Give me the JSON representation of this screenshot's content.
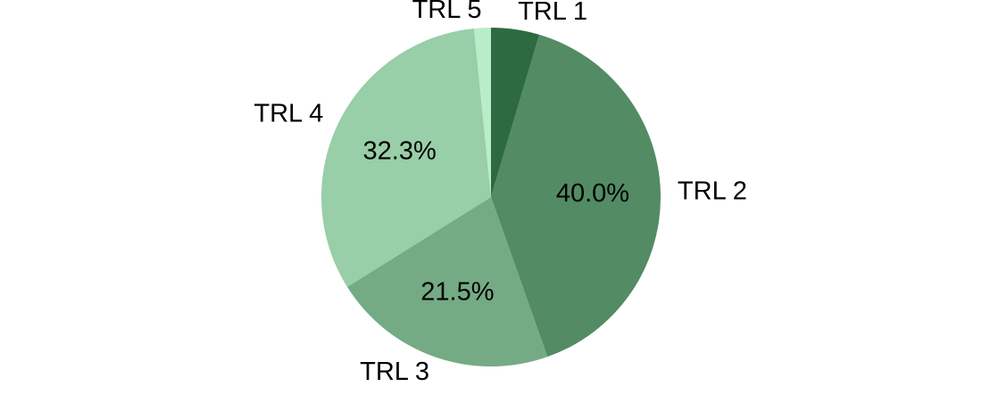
{
  "chart_data": {
    "type": "pie",
    "categories": [
      "TRL 1",
      "TRL 2",
      "TRL 3",
      "TRL 4",
      "TRL 5"
    ],
    "values": [
      4.6,
      40.0,
      21.5,
      32.3,
      1.6
    ],
    "value_labels": [
      null,
      "40.0%",
      "21.5%",
      "32.3%",
      null
    ],
    "colors": [
      "#2e6a40",
      "#528b64",
      "#74ab84",
      "#98cea8",
      "#b9edc9"
    ]
  }
}
